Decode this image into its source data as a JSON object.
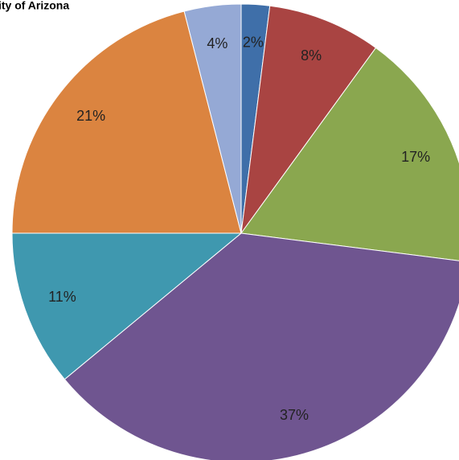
{
  "chart_data": {
    "type": "pie",
    "title": "ity of Arizona",
    "values": [
      2,
      8,
      17,
      37,
      11,
      21,
      4
    ],
    "value_labels": [
      "2%",
      "8%",
      "17%",
      "37%",
      "11%",
      "21%",
      "4%"
    ],
    "colors": [
      "#3f6fa9",
      "#a94442",
      "#8aa74f",
      "#6f5590",
      "#3f98af",
      "#db8440",
      "#95a9d5"
    ]
  }
}
